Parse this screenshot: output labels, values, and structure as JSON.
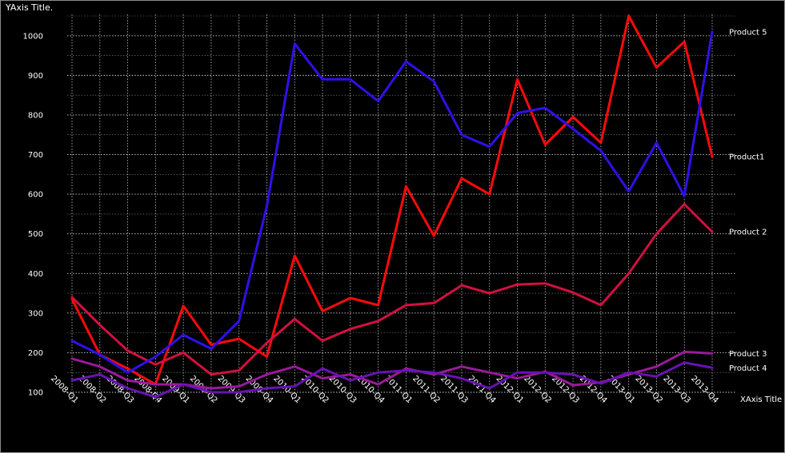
{
  "chart_data": {
    "type": "line",
    "ylabel": "YAxis Title.",
    "xlabel": "XAxis Title",
    "ylim": [
      100,
      1050
    ],
    "yticks": [
      100,
      200,
      300,
      400,
      500,
      600,
      700,
      800,
      900,
      1000
    ],
    "grid": true,
    "legend": "series labels at right end of lines",
    "categories": [
      "2008-Q1",
      "2008-Q2",
      "2008-Q3",
      "2008-Q4",
      "2009-Q1",
      "2009-Q2",
      "2009-Q3",
      "2009-Q4",
      "2010-Q1",
      "2010-Q2",
      "2010-Q3",
      "2010-Q4",
      "2011-Q1",
      "2011-Q2",
      "2011-Q3",
      "2011-Q4",
      "2012-Q1",
      "2012-Q2",
      "2012-Q3",
      "2012-Q4",
      "2013-Q1",
      "2013-Q2",
      "2013-Q3",
      "2013-Q4"
    ],
    "series": [
      {
        "name": "Product1",
        "color": "#ff0a0a",
        "values": [
          335,
          195,
          160,
          120,
          318,
          220,
          235,
          190,
          445,
          305,
          338,
          320,
          620,
          495,
          640,
          600,
          890,
          725,
          795,
          730,
          1050,
          920,
          985,
          695
        ]
      },
      {
        "name": "Product 2",
        "color": "#d21040",
        "values": [
          340,
          270,
          205,
          170,
          200,
          145,
          155,
          225,
          285,
          230,
          260,
          280,
          320,
          325,
          370,
          350,
          372,
          375,
          352,
          320,
          400,
          500,
          575,
          505
        ]
      },
      {
        "name": "Product 3",
        "color": "#9a1a9a",
        "values": [
          185,
          165,
          130,
          120,
          120,
          110,
          115,
          145,
          165,
          135,
          145,
          120,
          160,
          145,
          165,
          150,
          135,
          152,
          118,
          125,
          145,
          165,
          202,
          198
        ]
      },
      {
        "name": "Product 4",
        "color": "#6a12b4",
        "values": [
          130,
          145,
          110,
          88,
          120,
          100,
          100,
          110,
          115,
          160,
          130,
          150,
          155,
          150,
          135,
          110,
          150,
          150,
          145,
          122,
          150,
          140,
          175,
          162
        ]
      },
      {
        "name": "Product 5",
        "color": "#3010e8",
        "values": [
          230,
          195,
          150,
          190,
          245,
          210,
          280,
          570,
          980,
          890,
          890,
          835,
          935,
          885,
          750,
          720,
          805,
          818,
          765,
          710,
          607,
          730,
          595,
          1010
        ]
      }
    ]
  }
}
